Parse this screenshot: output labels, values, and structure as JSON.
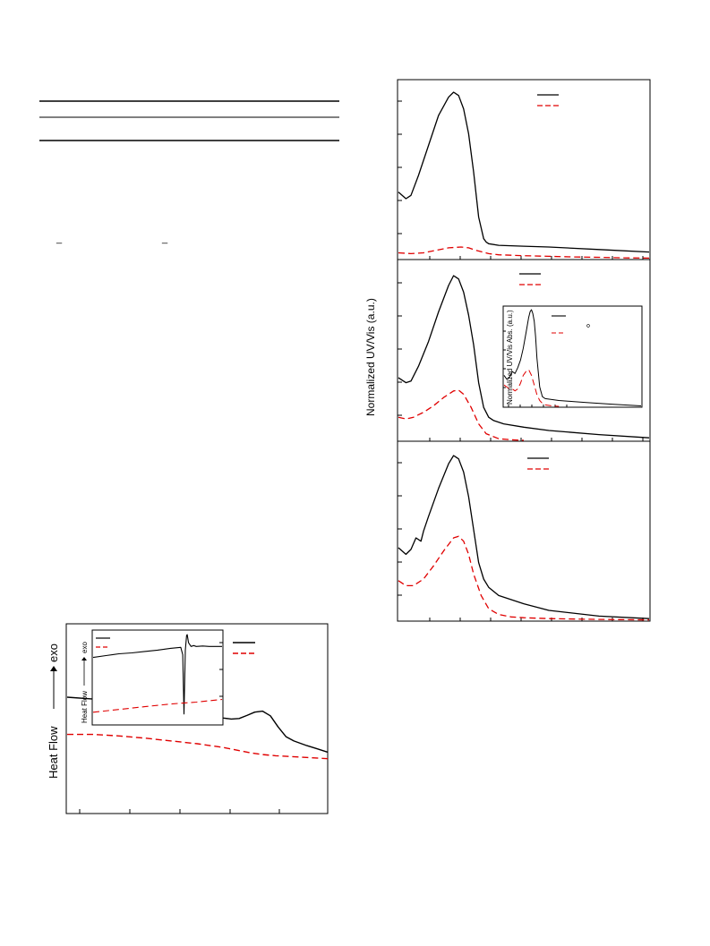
{
  "table_lines": {
    "rule_count": 3,
    "underscores": [
      "_",
      "_"
    ]
  },
  "chart_data": [
    {
      "id": "dsc",
      "type": "line",
      "xlabel": "",
      "ylabel": "Heat Flow",
      "ylabel_arrow": "exo",
      "x_range": [
        0,
        100
      ],
      "y_range": [
        0,
        100
      ],
      "grid": false,
      "legend": "top-right",
      "series": [
        {
          "color": "#000000",
          "dash": "solid",
          "x": [
            0,
            10,
            20,
            30,
            40,
            50,
            55,
            60,
            63,
            66,
            69,
            72,
            75,
            78,
            81,
            84,
            87,
            92,
            96,
            100
          ],
          "y": [
            62,
            61,
            59.5,
            58,
            56.3,
            54,
            52.3,
            50.8,
            50.3,
            50.6,
            52.2,
            54,
            54.5,
            52,
            46,
            40.8,
            38.5,
            36,
            34.3,
            32.5
          ]
        },
        {
          "color": "#e00000",
          "dash": "dashed",
          "x": [
            0,
            10,
            20,
            30,
            40,
            50,
            60,
            70,
            75,
            80,
            90,
            100
          ],
          "y": [
            42,
            42,
            41.2,
            40,
            38.5,
            37,
            35,
            32.2,
            31.2,
            30.6,
            29.8,
            29
          ]
        }
      ],
      "inset": {
        "ylabel": "Heat Flow",
        "ylabel_arrow": "exo",
        "legend": "top-left",
        "x_range": [
          0,
          100
        ],
        "y_range": [
          0,
          100
        ],
        "series": [
          {
            "color": "#000000",
            "dash": "solid",
            "x": [
              0,
              10,
              20,
              30,
              40,
              50,
              60,
              68,
              69.5,
              70.5,
              71.5,
              72.5,
              73,
              74,
              76,
              78,
              80,
              85,
              90,
              100
            ],
            "y": [
              72,
              74,
              76,
              77,
              78.5,
              80,
              82,
              83,
              75,
              10,
              80,
              96,
              97,
              88,
              84,
              85,
              84,
              84.5,
              84,
              84
            ]
          },
          {
            "color": "#e00000",
            "dash": "dashed",
            "x": [
              0,
              20,
              40,
              60,
              80,
              100
            ],
            "y": [
              12,
              15,
              18,
              21,
              23,
              26
            ]
          }
        ]
      }
    },
    {
      "id": "uvvis",
      "type": "line",
      "ylabel": "Normalized UV/Vis (a.u.)",
      "grid": false,
      "panels": [
        {
          "legend": "top-right",
          "x_range": [
            0,
            100
          ],
          "y_range": [
            0,
            100
          ],
          "series": [
            {
              "color": "#000000",
              "dash": "solid",
              "x": [
                0,
                3,
                5,
                8,
                12,
                16,
                20,
                22,
                24,
                26,
                28,
                30,
                32,
                34,
                35,
                36,
                40,
                50,
                60,
                80,
                100
              ],
              "y": [
                40,
                36,
                38,
                50,
                68,
                86,
                97,
                100,
                98,
                90,
                75,
                52,
                25,
                12,
                10,
                9,
                8,
                7.5,
                7,
                5.5,
                4
              ]
            },
            {
              "color": "#e00000",
              "dash": "dashed",
              "x": [
                0,
                5,
                10,
                15,
                20,
                25,
                28,
                31,
                36,
                40,
                50,
                60,
                70,
                80,
                90,
                100
              ],
              "y": [
                3.5,
                3,
                3.5,
                5,
                6.5,
                7,
                6.5,
                5,
                3,
                2.3,
                1.8,
                1.4,
                1,
                0.8,
                0.5,
                0.3
              ]
            }
          ]
        },
        {
          "legend": "top-right",
          "x_range": [
            0,
            100
          ],
          "y_range": [
            0,
            100
          ],
          "series": [
            {
              "color": "#000000",
              "dash": "solid",
              "x": [
                0,
                3,
                5,
                8,
                12,
                16,
                20,
                22,
                24,
                26,
                28,
                30,
                32,
                34,
                36,
                38,
                42,
                50,
                60,
                80,
                100
              ],
              "y": [
                38,
                35,
                36,
                45,
                60,
                78,
                94,
                100,
                98,
                90,
                76,
                58,
                35,
                20,
                14,
                12,
                10,
                8,
                6,
                3.5,
                1.5
              ]
            },
            {
              "color": "#e00000",
              "dash": "dashed",
              "x": [
                0,
                3,
                6,
                10,
                14,
                18,
                22,
                24,
                26,
                29,
                32,
                35,
                40,
                45,
                50
              ],
              "y": [
                14,
                13,
                14,
                17,
                21,
                26,
                30,
                30.5,
                28,
                20,
                10,
                4,
                1,
                0.3,
                0
              ]
            }
          ],
          "inset": {
            "ylabel": "Normalized UV/Vis Abs. (a.u.)",
            "legend": "top-left",
            "x_range": [
              0,
              100
            ],
            "y_range": [
              0,
              100
            ],
            "series": [
              {
                "color": "#000000",
                "dash": "solid",
                "x": [
                  0,
                  2,
                  4,
                  6,
                  8,
                  10,
                  12,
                  14,
                  16,
                  18,
                  19,
                  20,
                  21,
                  22,
                  23,
                  24,
                  26,
                  28,
                  30,
                  40,
                  50,
                  60,
                  80,
                  100
                ],
                "y": [
                  32,
                  28,
                  30,
                  36,
                  34,
                  40,
                  48,
                  60,
                  76,
                  92,
                  98,
                  100,
                  96,
                  88,
                  72,
                  50,
                  20,
                  10,
                  8,
                  6,
                  5,
                  4,
                  2,
                  0.5
                ]
              },
              {
                "color": "#e00000",
                "dash": "dashed",
                "x": [
                  0,
                  2,
                  4,
                  6,
                  8,
                  10,
                  12,
                  14,
                  16,
                  18,
                  20,
                  22,
                  24,
                  26,
                  28,
                  30,
                  35,
                  40
                ],
                "y": [
                  22,
                  20,
                  18,
                  18,
                  16,
                  18,
                  24,
                  32,
                  36,
                  38,
                  32,
                  22,
                  12,
                  6,
                  3,
                  1.5,
                  0.5,
                  0
                ]
              }
            ]
          }
        },
        {
          "legend": "top-right",
          "x_range": [
            0,
            100
          ],
          "y_range": [
            0,
            100
          ],
          "series": [
            {
              "color": "#000000",
              "dash": "solid",
              "x": [
                0,
                3,
                5,
                7,
                9,
                10,
                12,
                16,
                20,
                22,
                24,
                26,
                28,
                30,
                32,
                34,
                36,
                40,
                50,
                60,
                80,
                100
              ],
              "y": [
                44,
                40,
                43,
                50,
                48,
                54,
                63,
                80,
                95,
                100,
                98,
                90,
                75,
                55,
                35,
                25,
                20,
                15,
                10,
                6,
                2.5,
                1
              ]
            },
            {
              "color": "#e00000",
              "dash": "dashed",
              "x": [
                0,
                3,
                6,
                10,
                14,
                18,
                22,
                24,
                26,
                28,
                30,
                33,
                36,
                40,
                45,
                50,
                60,
                80,
                100
              ],
              "y": [
                24,
                21,
                21,
                25,
                33,
                42,
                50,
                51,
                48,
                40,
                28,
                15,
                7,
                3.5,
                2,
                1.5,
                1,
                0.5,
                0.2
              ]
            }
          ]
        }
      ]
    }
  ]
}
